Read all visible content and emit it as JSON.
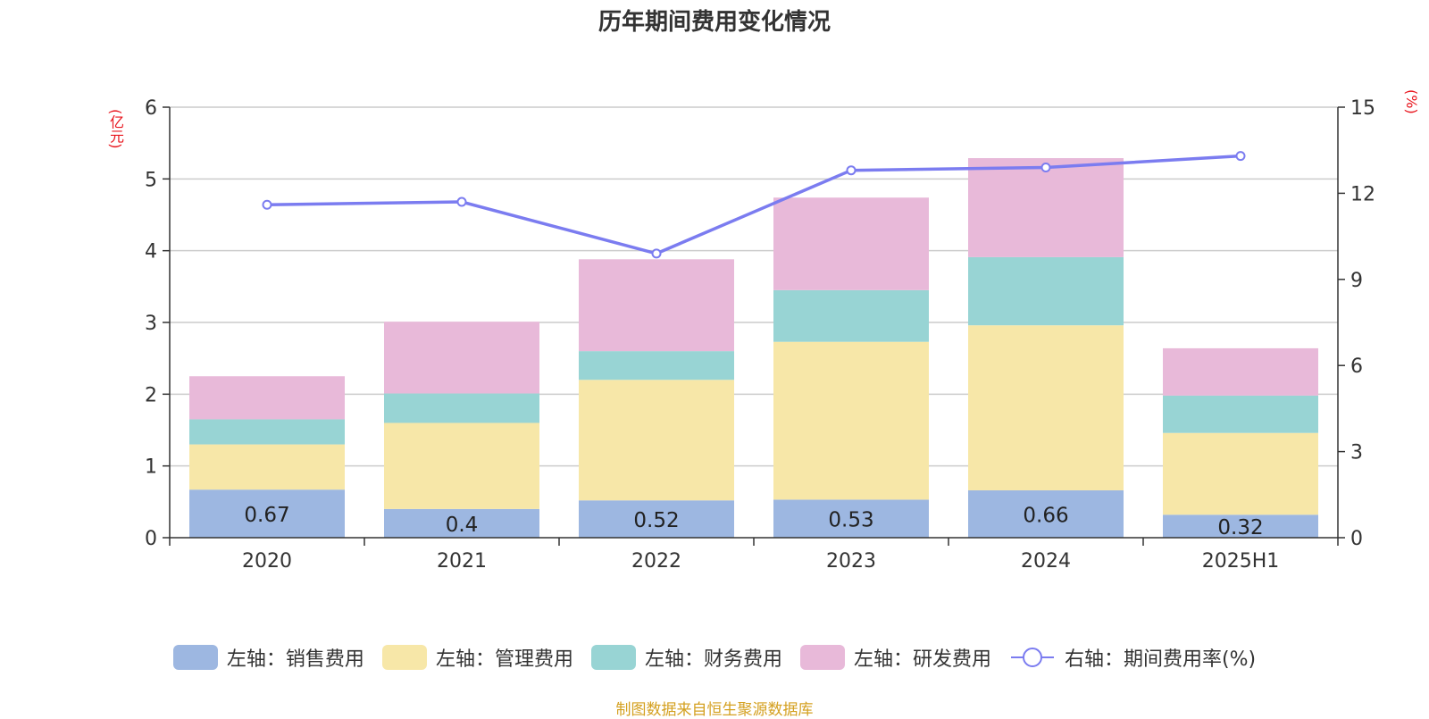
{
  "chart_data": {
    "type": "bar",
    "title": "历年期间费用变化情况",
    "left_unit": "(亿元)",
    "right_unit": "(%)",
    "categories": [
      "2020",
      "2021",
      "2022",
      "2023",
      "2024",
      "2025H1"
    ],
    "left_ylim": [
      0,
      6
    ],
    "left_ticks": [
      "0",
      "1",
      "2",
      "3",
      "4",
      "5",
      "6"
    ],
    "right_ylim": [
      0,
      15
    ],
    "right_ticks": [
      "0",
      "3",
      "6",
      "9",
      "12",
      "15"
    ],
    "grid": true,
    "legend_position": "bottom",
    "series": [
      {
        "name": "左轴：销售费用",
        "type": "bar",
        "axis": "left",
        "color": "#9db7e1",
        "values": [
          0.67,
          0.4,
          0.52,
          0.53,
          0.66,
          0.32
        ],
        "labels": [
          "0.67",
          "0.4",
          "0.52",
          "0.53",
          "0.66",
          "0.32"
        ]
      },
      {
        "name": "左轴：管理费用",
        "type": "bar",
        "axis": "left",
        "color": "#f7e7a8",
        "values": [
          0.63,
          1.2,
          1.68,
          2.2,
          2.3,
          1.14
        ]
      },
      {
        "name": "左轴：财务费用",
        "type": "bar",
        "axis": "left",
        "color": "#98d4d4",
        "values": [
          0.35,
          0.41,
          0.4,
          0.72,
          0.95,
          0.52
        ]
      },
      {
        "name": "左轴：研发费用",
        "type": "bar",
        "axis": "left",
        "color": "#e8b9d9",
        "values": [
          0.6,
          1.0,
          1.28,
          1.29,
          1.38,
          0.66
        ]
      },
      {
        "name": "右轴：期间费用率(%)",
        "type": "line",
        "axis": "right",
        "color": "#7b7cf0",
        "values": [
          11.6,
          11.7,
          9.9,
          12.8,
          12.9,
          13.3
        ]
      }
    ]
  },
  "footer": {
    "source": "制图数据来自恒生聚源数据库"
  }
}
